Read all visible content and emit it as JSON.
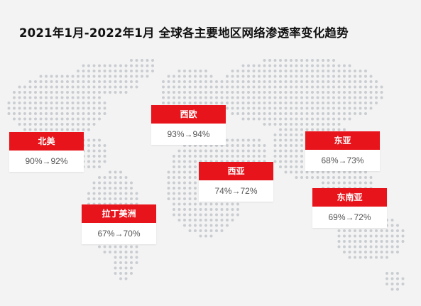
{
  "title": "2021年1月-2022年1月  全球各主要地区网络渗透率变化趋势",
  "colors": {
    "accent": "#e8141b",
    "map_dots": "#c9cdd1",
    "background": "#f3f3f3"
  },
  "regions": [
    {
      "name": "北美",
      "value": "90%→92%"
    },
    {
      "name": "西欧",
      "value": "93%→94%"
    },
    {
      "name": "西亚",
      "value": "74%→72%"
    },
    {
      "name": "东亚",
      "value": "68%→73%"
    },
    {
      "name": "东南亚",
      "value": "69%→72%"
    },
    {
      "name": "拉丁美洲",
      "value": "67%→70%"
    }
  ]
}
